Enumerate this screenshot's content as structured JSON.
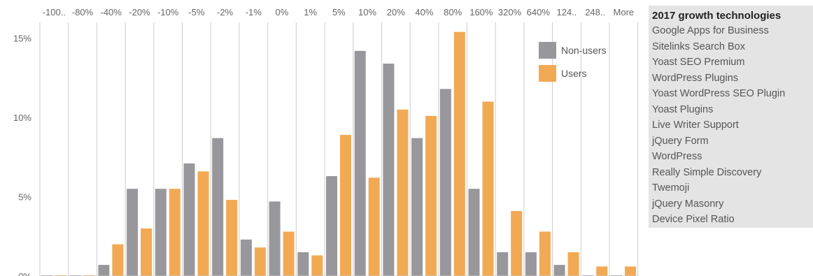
{
  "chart_data": {
    "type": "bar",
    "categories": [
      "-100..",
      "-80%",
      "-40%",
      "-20%",
      "-10%",
      "-5%",
      "-2%",
      "-1%",
      "0%",
      "1%",
      "5%",
      "10%",
      "20%",
      "40%",
      "80%",
      "160%",
      "320%",
      "640%",
      "124..",
      "248..",
      "More"
    ],
    "series": [
      {
        "name": "Non-users",
        "color": "#98989c",
        "values": [
          0,
          0,
          0.7,
          5.5,
          5.5,
          7.1,
          8.7,
          2.3,
          4.7,
          1.5,
          6.3,
          14.2,
          13.4,
          8.7,
          11.8,
          5.5,
          1.5,
          1.5,
          0.7,
          0,
          0
        ]
      },
      {
        "name": "Users",
        "color": "#f2a954",
        "values": [
          0,
          0,
          2.0,
          3.0,
          5.5,
          6.6,
          4.8,
          1.8,
          2.8,
          1.3,
          8.9,
          6.2,
          10.5,
          10.1,
          15.4,
          11.0,
          4.1,
          2.8,
          1.5,
          0.6,
          0.6
        ]
      }
    ],
    "yticks": [
      "0%",
      "5%",
      "10%",
      "15%"
    ],
    "ylim": [
      0,
      16
    ],
    "grid": "vertical",
    "legend": "top-right",
    "xlabel": "",
    "ylabel": ""
  },
  "side_panel": {
    "title": "2017 growth technologies",
    "items": [
      "Google Apps for Business",
      "Sitelinks Search Box",
      "Yoast SEO Premium",
      "WordPress Plugins",
      "Yoast WordPress SEO Plugin",
      "Yoast Plugins",
      "Live Writer Support",
      "jQuery Form",
      "WordPress",
      "Really Simple Discovery",
      "Twemoji",
      "jQuery Masonry",
      "Device Pixel Ratio"
    ]
  }
}
